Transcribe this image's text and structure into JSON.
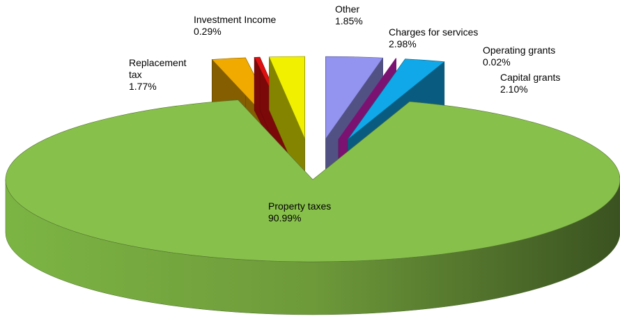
{
  "chart_data": {
    "type": "pie",
    "slices": [
      {
        "name": "Charges for services",
        "value": 2.98,
        "value_label": "2.98%",
        "color": "#9393f0"
      },
      {
        "name": "Operating grants",
        "value": 0.02,
        "value_label": "0.02%",
        "color": "#e020d0"
      },
      {
        "name": "Capital grants",
        "value": 2.1,
        "value_label": "2.10%",
        "color": "#10a8e8"
      },
      {
        "name": "Property taxes",
        "value": 90.99,
        "value_label": "90.99%",
        "color": "#88c04c"
      },
      {
        "name": "Replacement tax",
        "value": 1.77,
        "value_label": "1.77%",
        "color": "#f0aa00"
      },
      {
        "name": "Investment Income",
        "value": 0.29,
        "value_label": "0.29%",
        "color": "#e01010"
      },
      {
        "name": "Other",
        "value": 1.85,
        "value_label": "1.85%",
        "color": "#f0f000"
      }
    ]
  }
}
